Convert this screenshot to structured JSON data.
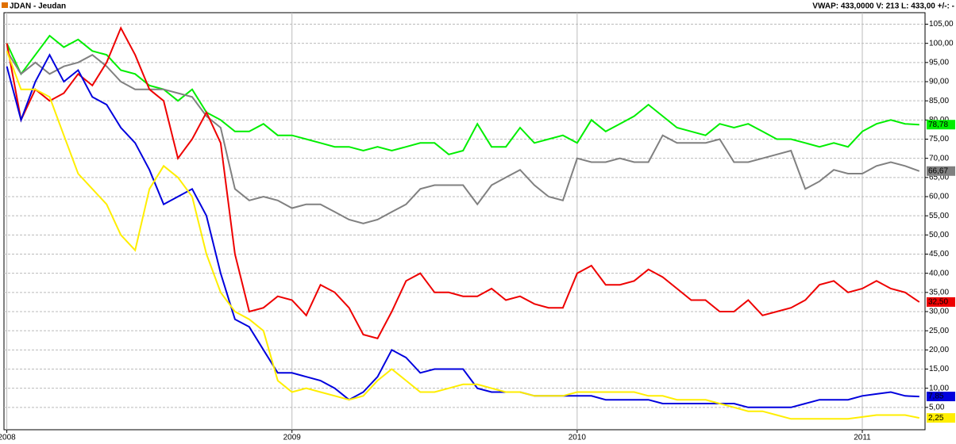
{
  "header": {
    "title": "JDAN - Jeudan",
    "info": "VWAP: 433,0000  V: 213  L: 433,00  +/-: -"
  },
  "chart_data": {
    "type": "line",
    "x": [
      2008,
      2008.05,
      2008.1,
      2008.15,
      2008.2,
      2008.25,
      2008.3,
      2008.35,
      2008.4,
      2008.45,
      2008.5,
      2008.55,
      2008.6,
      2008.65,
      2008.7,
      2008.75,
      2008.8,
      2008.85,
      2008.9,
      2008.95,
      2009,
      2009.05,
      2009.1,
      2009.15,
      2009.2,
      2009.25,
      2009.3,
      2009.35,
      2009.4,
      2009.45,
      2009.5,
      2009.55,
      2009.6,
      2009.65,
      2009.7,
      2009.75,
      2009.8,
      2009.85,
      2009.9,
      2009.95,
      2010,
      2010.05,
      2010.1,
      2010.15,
      2010.2,
      2010.25,
      2010.3,
      2010.35,
      2010.4,
      2010.45,
      2010.5,
      2010.55,
      2010.6,
      2010.65,
      2010.7,
      2010.75,
      2010.8,
      2010.85,
      2010.9,
      2010.95,
      2011,
      2011.05,
      2011.1,
      2011.15,
      2011.2
    ],
    "xlim": [
      2007.99,
      2011.22
    ],
    "xticks": [
      2008,
      2009,
      2010,
      2011
    ],
    "ylim": [
      0,
      108
    ],
    "yticks": [
      {
        "value": 5,
        "label": "5,00"
      },
      {
        "value": 10,
        "label": "10,00"
      },
      {
        "value": 15,
        "label": "15,00"
      },
      {
        "value": 20,
        "label": "20,00"
      },
      {
        "value": 25,
        "label": "25,00"
      },
      {
        "value": 30,
        "label": "30,00"
      },
      {
        "value": 35,
        "label": "35,00"
      },
      {
        "value": 40,
        "label": "40,00"
      },
      {
        "value": 45,
        "label": "45,00"
      },
      {
        "value": 50,
        "label": "50,00"
      },
      {
        "value": 55,
        "label": "55,00"
      },
      {
        "value": 60,
        "label": "60,00"
      },
      {
        "value": 65,
        "label": "65,00"
      },
      {
        "value": 70,
        "label": "70,00"
      },
      {
        "value": 75,
        "label": "75,00"
      },
      {
        "value": 80,
        "label": "80,00"
      },
      {
        "value": 85,
        "label": "85,00"
      },
      {
        "value": 90,
        "label": "90,00"
      },
      {
        "value": 95,
        "label": "95,00"
      },
      {
        "value": 100,
        "label": "100,00"
      },
      {
        "value": 105,
        "label": "105,00"
      }
    ],
    "grid": true,
    "series": [
      {
        "color": "#00ee00",
        "last_label": "78,78",
        "values": [
          100,
          92,
          97,
          102,
          99,
          101,
          98,
          97,
          93,
          92,
          89,
          88,
          85,
          88,
          82,
          80,
          77,
          77,
          79,
          76,
          76,
          75,
          74,
          73,
          73,
          72,
          73,
          72,
          73,
          74,
          74,
          71,
          72,
          79,
          73,
          73,
          78,
          74,
          75,
          76,
          74,
          80,
          77,
          79,
          81,
          84,
          81,
          78,
          77,
          76,
          79,
          78,
          79,
          77,
          75,
          75,
          74,
          73,
          74,
          73,
          77,
          79,
          80,
          79,
          78.78
        ]
      },
      {
        "color": "#808080",
        "last_label": "66,67",
        "values": [
          98,
          92,
          95,
          92,
          94,
          95,
          97,
          94,
          90,
          88,
          88,
          88,
          87,
          86,
          81,
          78,
          62,
          59,
          60,
          59,
          57,
          58,
          58,
          56,
          54,
          53,
          54,
          56,
          58,
          62,
          63,
          63,
          63,
          58,
          63,
          65,
          67,
          63,
          60,
          59,
          70,
          69,
          69,
          70,
          69,
          69,
          76,
          74,
          74,
          74,
          75,
          69,
          69,
          70,
          71,
          72,
          62,
          64,
          67,
          66,
          66,
          68,
          69,
          68,
          66.67
        ]
      },
      {
        "color": "#ee0000",
        "last_label": "32,50",
        "values": [
          100,
          80,
          88,
          85,
          87,
          92,
          89,
          95,
          104,
          97,
          88,
          85,
          70,
          75,
          82,
          74,
          45,
          30,
          31,
          34,
          33,
          29,
          37,
          35,
          31,
          24,
          23,
          30,
          38,
          40,
          35,
          35,
          34,
          34,
          36,
          33,
          34,
          32,
          31,
          31,
          40,
          42,
          37,
          37,
          38,
          41,
          39,
          36,
          33,
          33,
          30,
          30,
          33,
          29,
          30,
          31,
          33,
          37,
          38,
          35,
          36,
          38,
          36,
          35,
          32.5
        ]
      },
      {
        "color": "#0000dd",
        "last_label": "7,85",
        "values": [
          94,
          80,
          90,
          97,
          90,
          93,
          86,
          84,
          78,
          74,
          67,
          58,
          60,
          62,
          55,
          40,
          28,
          26,
          20,
          14,
          14,
          13,
          12,
          10,
          7,
          9,
          13,
          20,
          18,
          14,
          15,
          15,
          15,
          10,
          9,
          9,
          9,
          8,
          8,
          8,
          8,
          8,
          7,
          7,
          7,
          7,
          6,
          6,
          6,
          6,
          6,
          6,
          5,
          5,
          5,
          5,
          6,
          7,
          7,
          7,
          8,
          8.5,
          9,
          8,
          7.85
        ]
      },
      {
        "color": "#ffee00",
        "last_label": "2,25",
        "values": [
          98,
          88,
          88,
          86,
          76,
          66,
          62,
          58,
          50,
          46,
          62,
          68,
          65,
          60,
          45,
          35,
          30,
          28,
          25,
          12,
          9,
          10,
          9,
          8,
          7,
          8,
          12,
          15,
          12,
          9,
          9,
          10,
          11,
          11,
          10,
          9,
          9,
          8,
          8,
          8,
          9,
          9,
          9,
          9,
          9,
          8,
          8,
          7,
          7,
          7,
          6,
          5,
          4,
          4,
          3,
          2,
          2,
          2,
          2,
          2,
          2.5,
          3,
          3,
          3,
          2.25
        ]
      }
    ]
  }
}
